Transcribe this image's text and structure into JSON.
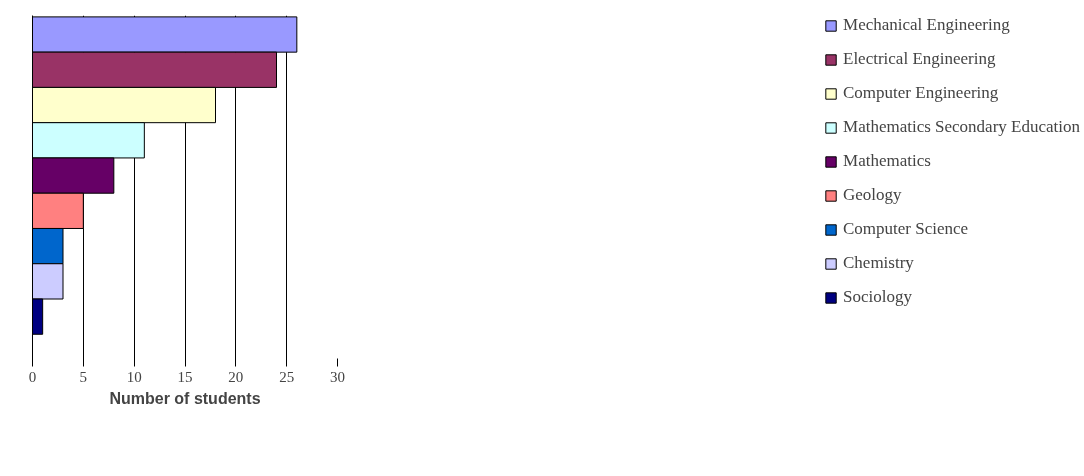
{
  "chart_data": {
    "type": "bar",
    "orientation": "horizontal",
    "xlabel": "Number of students",
    "categories": [
      null
    ],
    "series": [
      {
        "name": "Mechanical Engineering",
        "color": "#9999ff",
        "values": [
          26
        ]
      },
      {
        "name": "Electrical Engineering",
        "color": "#993366",
        "values": [
          24
        ]
      },
      {
        "name": "Computer Engineering",
        "color": "#ffffcc",
        "values": [
          18
        ]
      },
      {
        "name": "Mathematics Secondary Education",
        "color": "#ccffff",
        "values": [
          11
        ]
      },
      {
        "name": "Mathematics",
        "color": "#660066",
        "values": [
          8
        ]
      },
      {
        "name": "Geology",
        "color": "#ff8080",
        "values": [
          5
        ]
      },
      {
        "name": "Computer Science",
        "color": "#0066cc",
        "values": [
          3
        ]
      },
      {
        "name": "Chemistry",
        "color": "#ccccff",
        "values": [
          3
        ]
      },
      {
        "name": "Sociology",
        "color": "#000080",
        "values": [
          1
        ]
      }
    ],
    "xlim": [
      0,
      30
    ],
    "xticks": [
      0,
      5,
      10,
      15,
      20,
      25,
      30
    ],
    "grid": "x",
    "legend": "right"
  }
}
